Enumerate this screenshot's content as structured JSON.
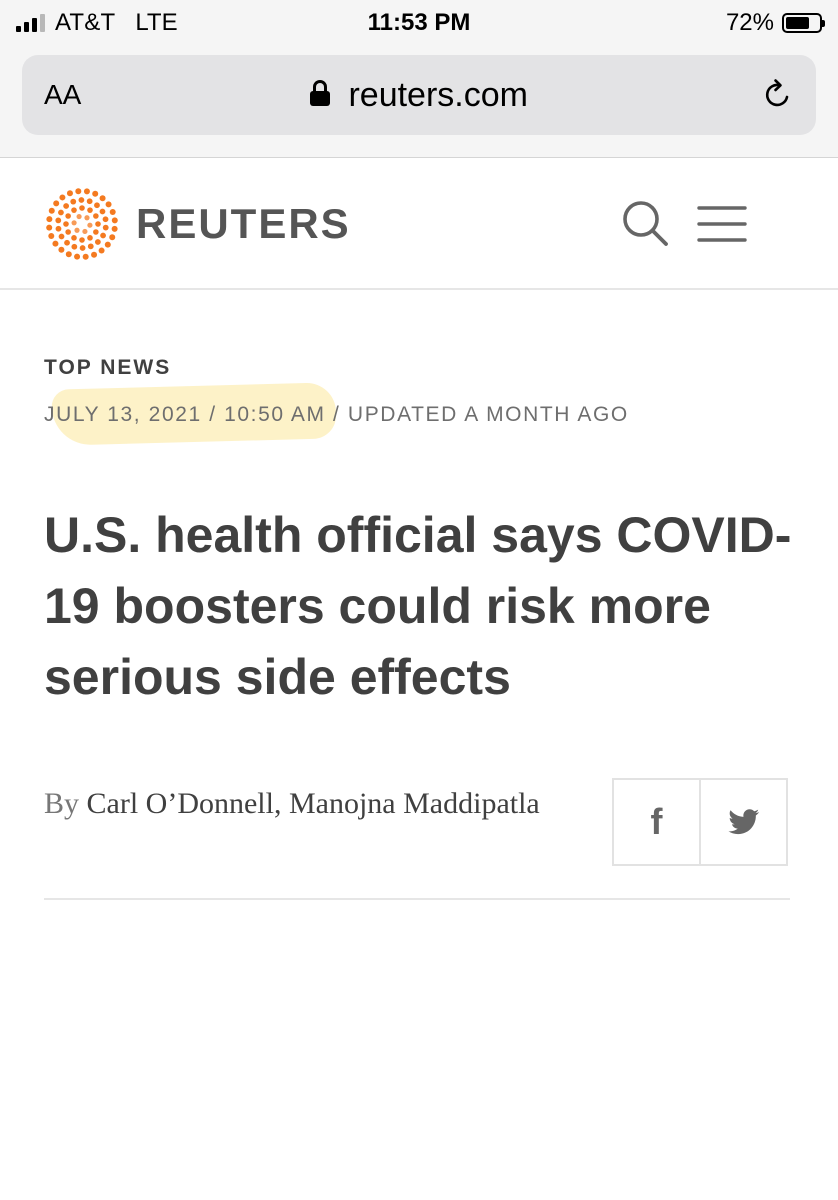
{
  "status_bar": {
    "carrier": "AT&T",
    "network": "LTE",
    "time": "11:53 PM",
    "battery_percent": "72%",
    "battery_level": 0.72,
    "signal_bars_filled": 3,
    "signal_bars_total": 4
  },
  "browser": {
    "text_size_button": "AA",
    "url": "reuters.com",
    "icons": [
      "lock-icon",
      "reload-icon"
    ]
  },
  "site_header": {
    "brand": "REUTERS",
    "brand_color": "#f47a20",
    "icons": [
      "reuters-logo-icon",
      "search-icon",
      "menu-icon"
    ]
  },
  "article": {
    "section": "TOP NEWS",
    "dateline": "JULY 13, 2021 / 10:50 AM / UPDATED A MONTH AGO",
    "headline": "U.S. health official says COVID-19 boosters could risk more serious side effects",
    "byline_prefix": "By",
    "authors": "Carl O’Donnell, Manojna Maddipatla",
    "share_icons": [
      "facebook-icon",
      "twitter-icon"
    ],
    "highlight_color": "#fdf1c2"
  }
}
